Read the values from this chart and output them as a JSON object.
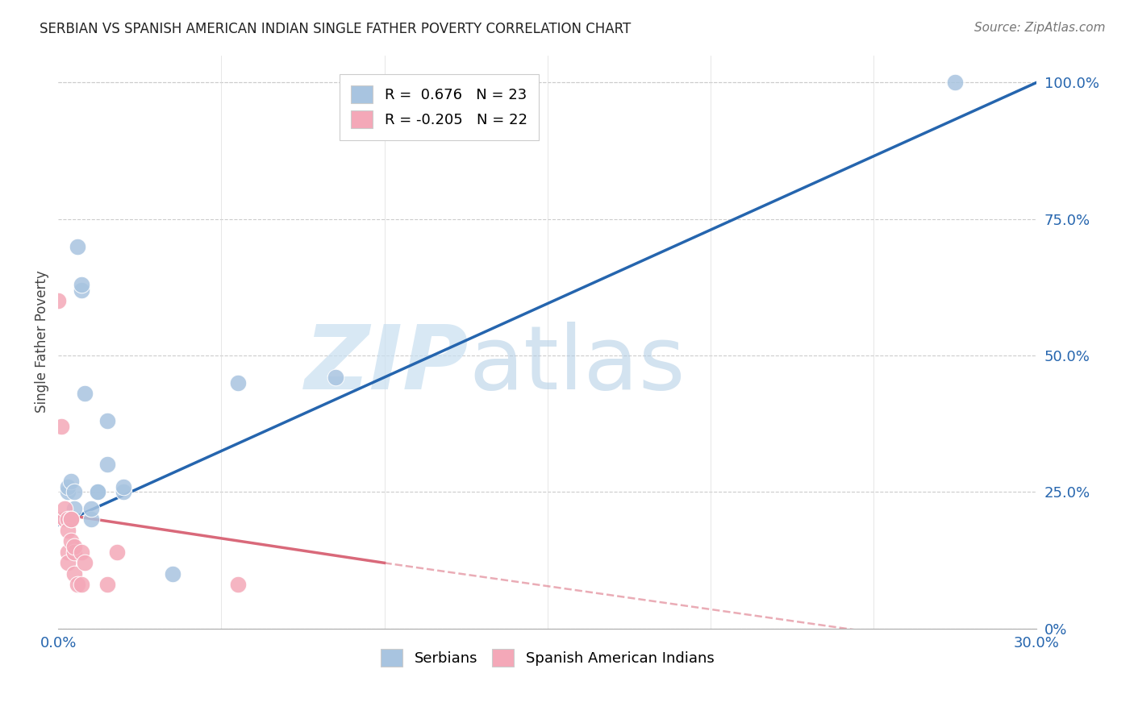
{
  "title": "SERBIAN VS SPANISH AMERICAN INDIAN SINGLE FATHER POVERTY CORRELATION CHART",
  "source": "Source: ZipAtlas.com",
  "ylabel": "Single Father Poverty",
  "right_yticks": [
    "0%",
    "25.0%",
    "50.0%",
    "75.0%",
    "100.0%"
  ],
  "right_ytick_vals": [
    0,
    25,
    50,
    75,
    100
  ],
  "serbian_color": "#a8c4e0",
  "spanish_color": "#f4a8b8",
  "serbian_line_color": "#2565ae",
  "spanish_line_color": "#d9697a",
  "watermark_zip": "ZIP",
  "watermark_atlas": "atlas",
  "xlim": [
    0.0,
    30.0
  ],
  "ylim": [
    0.0,
    105.0
  ],
  "serbian_line": [
    0.0,
    19.0,
    30.0,
    100.0
  ],
  "spanish_line_solid": [
    0.0,
    21.0,
    10.0,
    12.0
  ],
  "spanish_line_dashed": [
    10.0,
    12.0,
    30.0,
    -5.0
  ],
  "serbian_points": [
    [
      0.2,
      20.0
    ],
    [
      0.3,
      25.0
    ],
    [
      0.3,
      26.0
    ],
    [
      0.4,
      20.0
    ],
    [
      0.4,
      27.0
    ],
    [
      0.5,
      22.0
    ],
    [
      0.5,
      25.0
    ],
    [
      0.6,
      70.0
    ],
    [
      0.7,
      62.0
    ],
    [
      0.7,
      63.0
    ],
    [
      0.8,
      43.0
    ],
    [
      1.0,
      20.0
    ],
    [
      1.0,
      22.0
    ],
    [
      1.2,
      25.0
    ],
    [
      1.2,
      25.0
    ],
    [
      1.5,
      30.0
    ],
    [
      1.5,
      38.0
    ],
    [
      2.0,
      25.0
    ],
    [
      2.0,
      26.0
    ],
    [
      3.5,
      10.0
    ],
    [
      5.5,
      45.0
    ],
    [
      8.5,
      46.0
    ],
    [
      27.5,
      100.0
    ]
  ],
  "spanish_points": [
    [
      0.0,
      60.0
    ],
    [
      0.1,
      37.0
    ],
    [
      0.2,
      20.0
    ],
    [
      0.2,
      20.0
    ],
    [
      0.2,
      22.0
    ],
    [
      0.3,
      20.0
    ],
    [
      0.3,
      18.0
    ],
    [
      0.3,
      14.0
    ],
    [
      0.3,
      12.0
    ],
    [
      0.4,
      20.0
    ],
    [
      0.4,
      20.0
    ],
    [
      0.4,
      16.0
    ],
    [
      0.5,
      14.0
    ],
    [
      0.5,
      15.0
    ],
    [
      0.5,
      10.0
    ],
    [
      0.6,
      8.0
    ],
    [
      0.7,
      14.0
    ],
    [
      0.7,
      8.0
    ],
    [
      0.8,
      12.0
    ],
    [
      1.5,
      8.0
    ],
    [
      1.8,
      14.0
    ],
    [
      5.5,
      8.0
    ]
  ]
}
